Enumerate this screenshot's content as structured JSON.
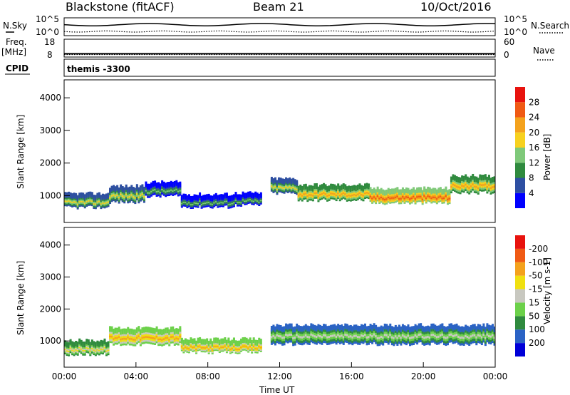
{
  "header": {
    "title_left": "Blackstone (fitACF)",
    "title_center": "Beam 21",
    "title_right": "10/Oct/2016"
  },
  "top_panels": {
    "nsky_label": "N.Sky",
    "nsky_ticks": [
      "10^5",
      "10^0"
    ],
    "nsearch_label": "N.Search",
    "nsearch_ticks": [
      "10^5",
      "10^0"
    ],
    "freq_label": "Freq.",
    "freq_unit": "[MHz]",
    "freq_ticks": [
      "18",
      "8"
    ],
    "nave_label": "Nave",
    "nave_ticks": [
      "60",
      "0"
    ],
    "cpid_label": "CPID",
    "cpid_value": "themis -3300"
  },
  "chart_data": [
    {
      "type": "heatmap",
      "name": "power",
      "ylabel": "Slant Range [km]",
      "yticks": [
        "1000",
        "2000",
        "3000",
        "4000"
      ],
      "ylim": [
        180,
        4550
      ],
      "xlim_hours": [
        0,
        24
      ],
      "colorbar_label": "Power [dB]",
      "colorbar_ticks": [
        "4",
        "8",
        "12",
        "16",
        "20",
        "24",
        "28"
      ],
      "colors": [
        "#0000ff",
        "#2e4fa2",
        "#2f8a3e",
        "#7fc97a",
        "#f7d11f",
        "#f4a21d",
        "#f05a14",
        "#e8130e"
      ],
      "bands": [
        {
          "start": 0.0,
          "end": 2.5,
          "center": 850,
          "width": 260,
          "level": 4
        },
        {
          "start": 2.5,
          "end": 4.5,
          "center": 1050,
          "width": 320,
          "level": 4
        },
        {
          "start": 4.5,
          "end": 6.5,
          "center": 1200,
          "width": 260,
          "level": 3
        },
        {
          "start": 6.5,
          "end": 9.5,
          "center": 850,
          "width": 220,
          "level": 3
        },
        {
          "start": 9.5,
          "end": 11.0,
          "center": 900,
          "width": 200,
          "level": 3
        },
        {
          "start": 11.5,
          "end": 13.0,
          "center": 1300,
          "width": 280,
          "level": 4
        },
        {
          "start": 13.0,
          "end": 17.0,
          "center": 1100,
          "width": 300,
          "level": 5
        },
        {
          "start": 17.0,
          "end": 21.5,
          "center": 1000,
          "width": 280,
          "level": 6
        },
        {
          "start": 21.5,
          "end": 24.0,
          "center": 1350,
          "width": 340,
          "level": 5
        }
      ]
    },
    {
      "type": "heatmap",
      "name": "velocity",
      "ylabel": "Slant Range [km]",
      "yticks": [
        "1000",
        "2000",
        "3000",
        "4000"
      ],
      "ylim": [
        180,
        4550
      ],
      "xlim_hours": [
        0,
        24
      ],
      "xticks": [
        "00:00",
        "04:00",
        "08:00",
        "12:00",
        "16:00",
        "20:00",
        "00:00"
      ],
      "xlabel": "Time UT",
      "colorbar_label": "Velocity [m s-1]",
      "colorbar_ticks": [
        "200",
        "100",
        "50",
        "15",
        "-15",
        "-50",
        "-100",
        "-200"
      ],
      "colors": [
        "#0000d8",
        "#2b63c5",
        "#2f8a3e",
        "#6cd14a",
        "#c8c8c0",
        "#f0e010",
        "#f4a21d",
        "#f05a14",
        "#e8130e"
      ],
      "bands": [
        {
          "start": 0.0,
          "end": 2.5,
          "center": 800,
          "width": 260,
          "level": 5
        },
        {
          "start": 2.5,
          "end": 6.5,
          "center": 1150,
          "width": 350,
          "level": 6
        },
        {
          "start": 6.5,
          "end": 11.0,
          "center": 850,
          "width": 240,
          "level": 6
        },
        {
          "start": 11.5,
          "end": 24.0,
          "center": 1200,
          "width": 420,
          "level": 4
        }
      ]
    }
  ]
}
